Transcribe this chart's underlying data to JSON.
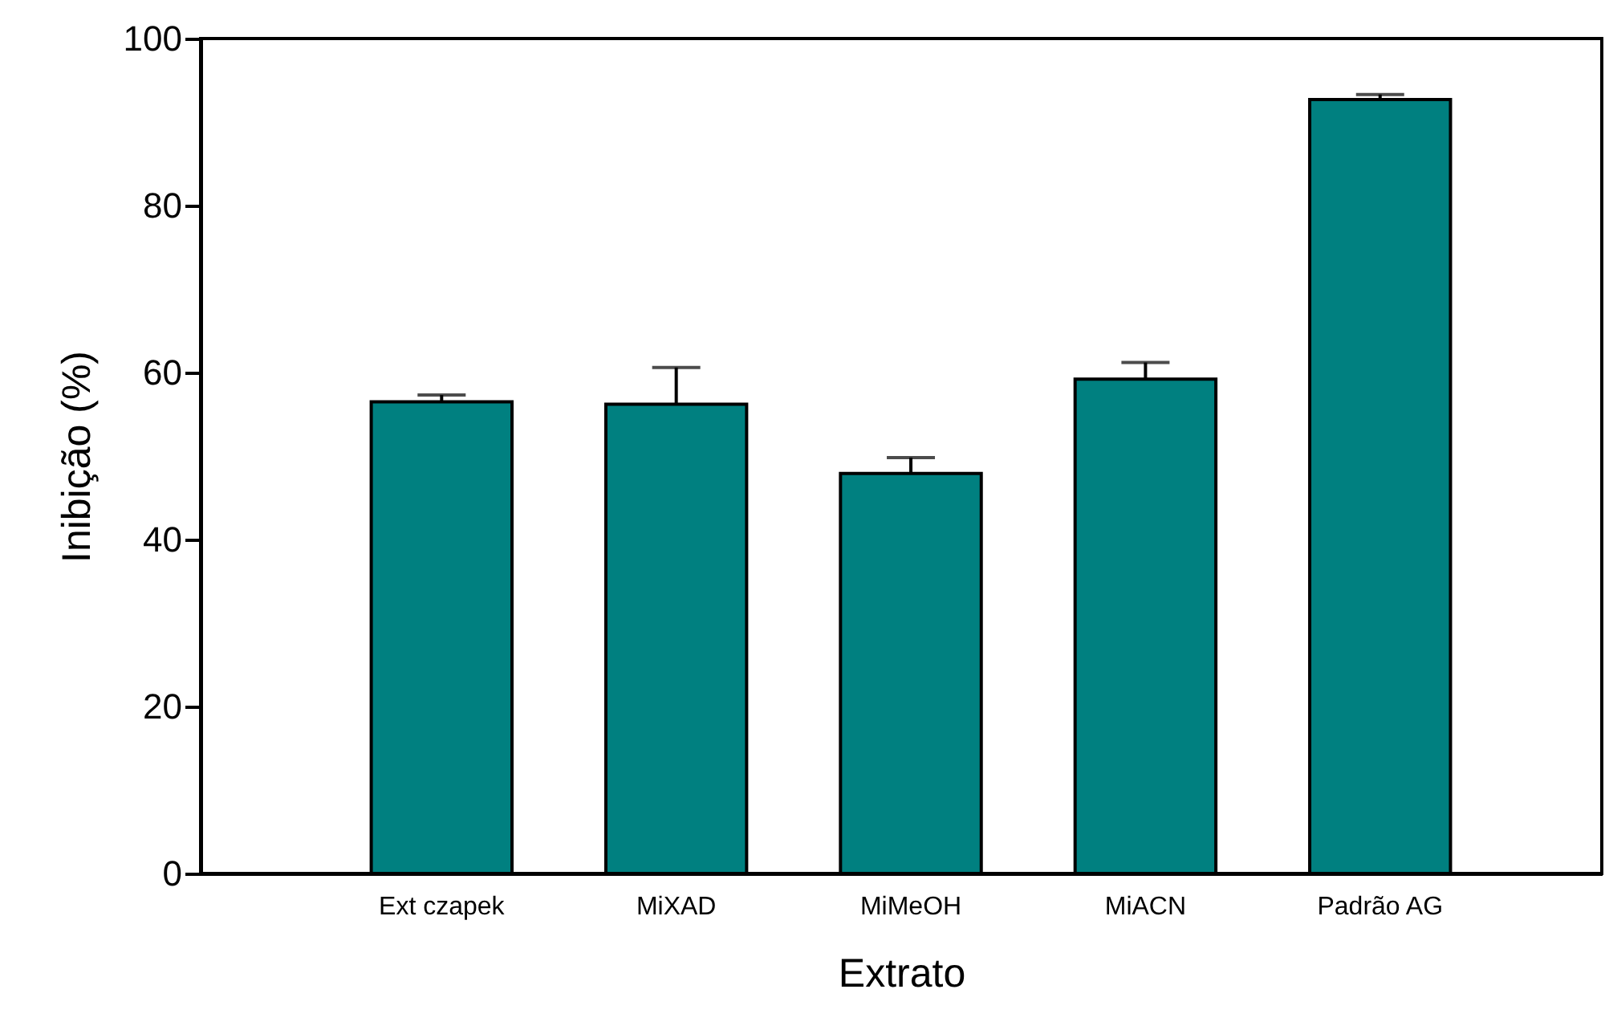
{
  "chart_data": {
    "type": "bar",
    "xlabel": "Extrato",
    "ylabel": "Inibição (%)",
    "categories": [
      "Ext czapek",
      "MiXAD",
      "MiMeOH",
      "MiACN",
      "Padrão AG"
    ],
    "values": [
      56.5,
      56.2,
      47.9,
      59.2,
      92.7
    ],
    "errors": [
      [
        56.5,
        57.3
      ],
      [
        56.2,
        60.6
      ],
      [
        47.9,
        49.8
      ],
      [
        59.2,
        61.2
      ],
      [
        92.7,
        93.3
      ]
    ],
    "colors": [
      "#008080",
      "#008080",
      "#008080",
      "#008080",
      "#008080"
    ],
    "ylim": [
      0,
      100
    ],
    "yticks": [
      0,
      20,
      40,
      60,
      80,
      100
    ],
    "grid": false
  }
}
